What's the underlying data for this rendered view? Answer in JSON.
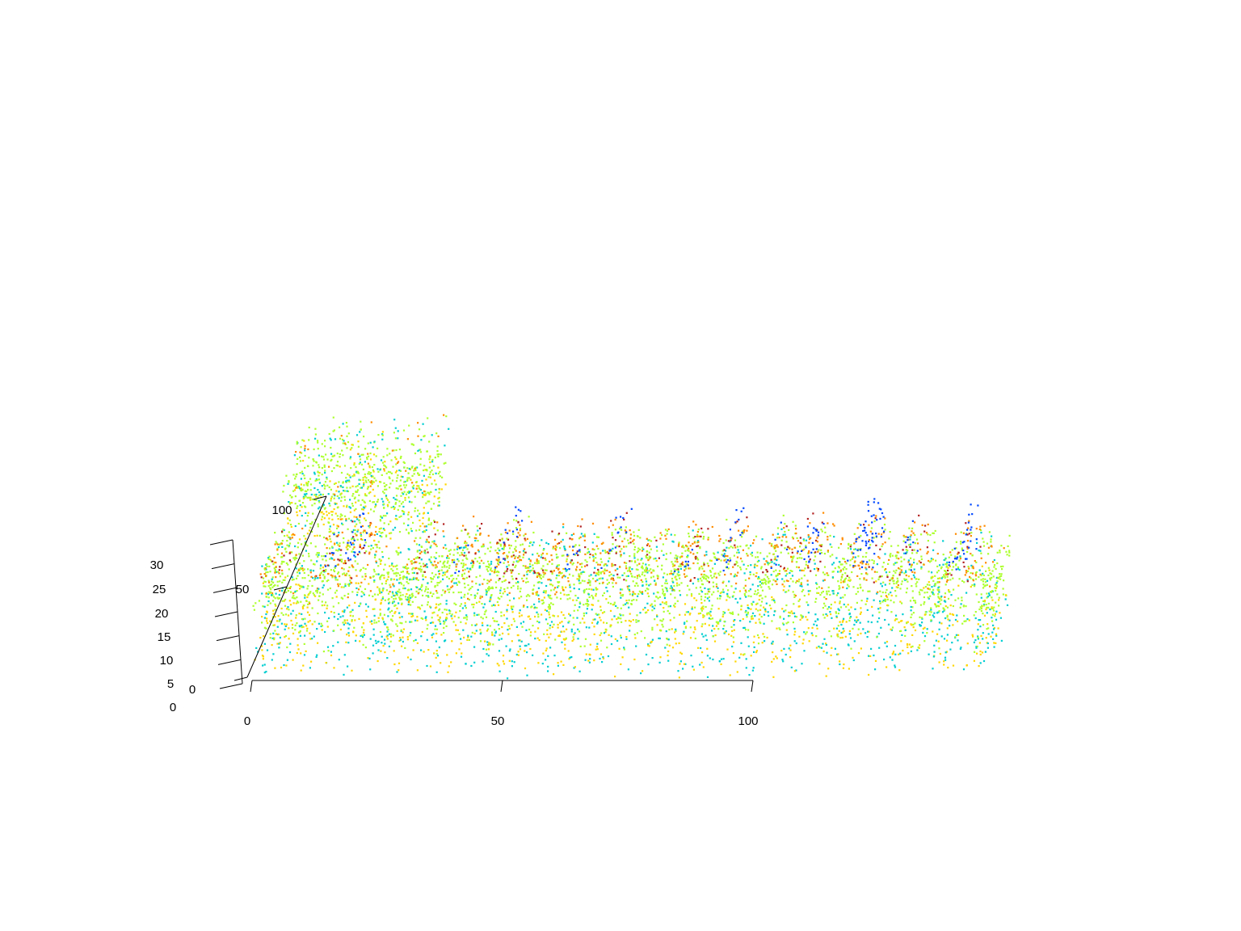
{
  "chart_data": {
    "type": "scatter",
    "subtype": "3d-point-cloud",
    "title": "",
    "xlabel": "",
    "ylabel": "",
    "zlabel": "",
    "x_axis": {
      "ticks": [
        {
          "value": 0,
          "label": "0"
        },
        {
          "value": 50,
          "label": "50"
        },
        {
          "value": 100,
          "label": "100"
        }
      ],
      "range": [
        0,
        148
      ]
    },
    "y_axis": {
      "ticks": [
        {
          "value": 0,
          "label": "0"
        },
        {
          "value": 50,
          "label": "50"
        },
        {
          "value": 100,
          "label": "100"
        }
      ],
      "range": [
        0,
        105
      ]
    },
    "z_axis": {
      "ticks": [
        {
          "value": 0,
          "label": "0"
        },
        {
          "value": 5,
          "label": "5"
        },
        {
          "value": 10,
          "label": "10"
        },
        {
          "value": 15,
          "label": "15"
        },
        {
          "value": 20,
          "label": "20"
        },
        {
          "value": 25,
          "label": "25"
        },
        {
          "value": 30,
          "label": "30"
        }
      ],
      "range": [
        0,
        32
      ]
    },
    "color_by": "height",
    "color_scale": [
      "#00ced1",
      "#ffd700",
      "#adff2f",
      "#ff8c00",
      "#b22222",
      "#0047ff"
    ],
    "grid": false,
    "legend": "none",
    "crown_peaks_x": [
      4,
      15,
      19,
      33,
      41,
      50,
      58,
      63,
      71,
      78,
      86,
      94,
      104,
      110,
      121,
      130,
      141
    ]
  }
}
